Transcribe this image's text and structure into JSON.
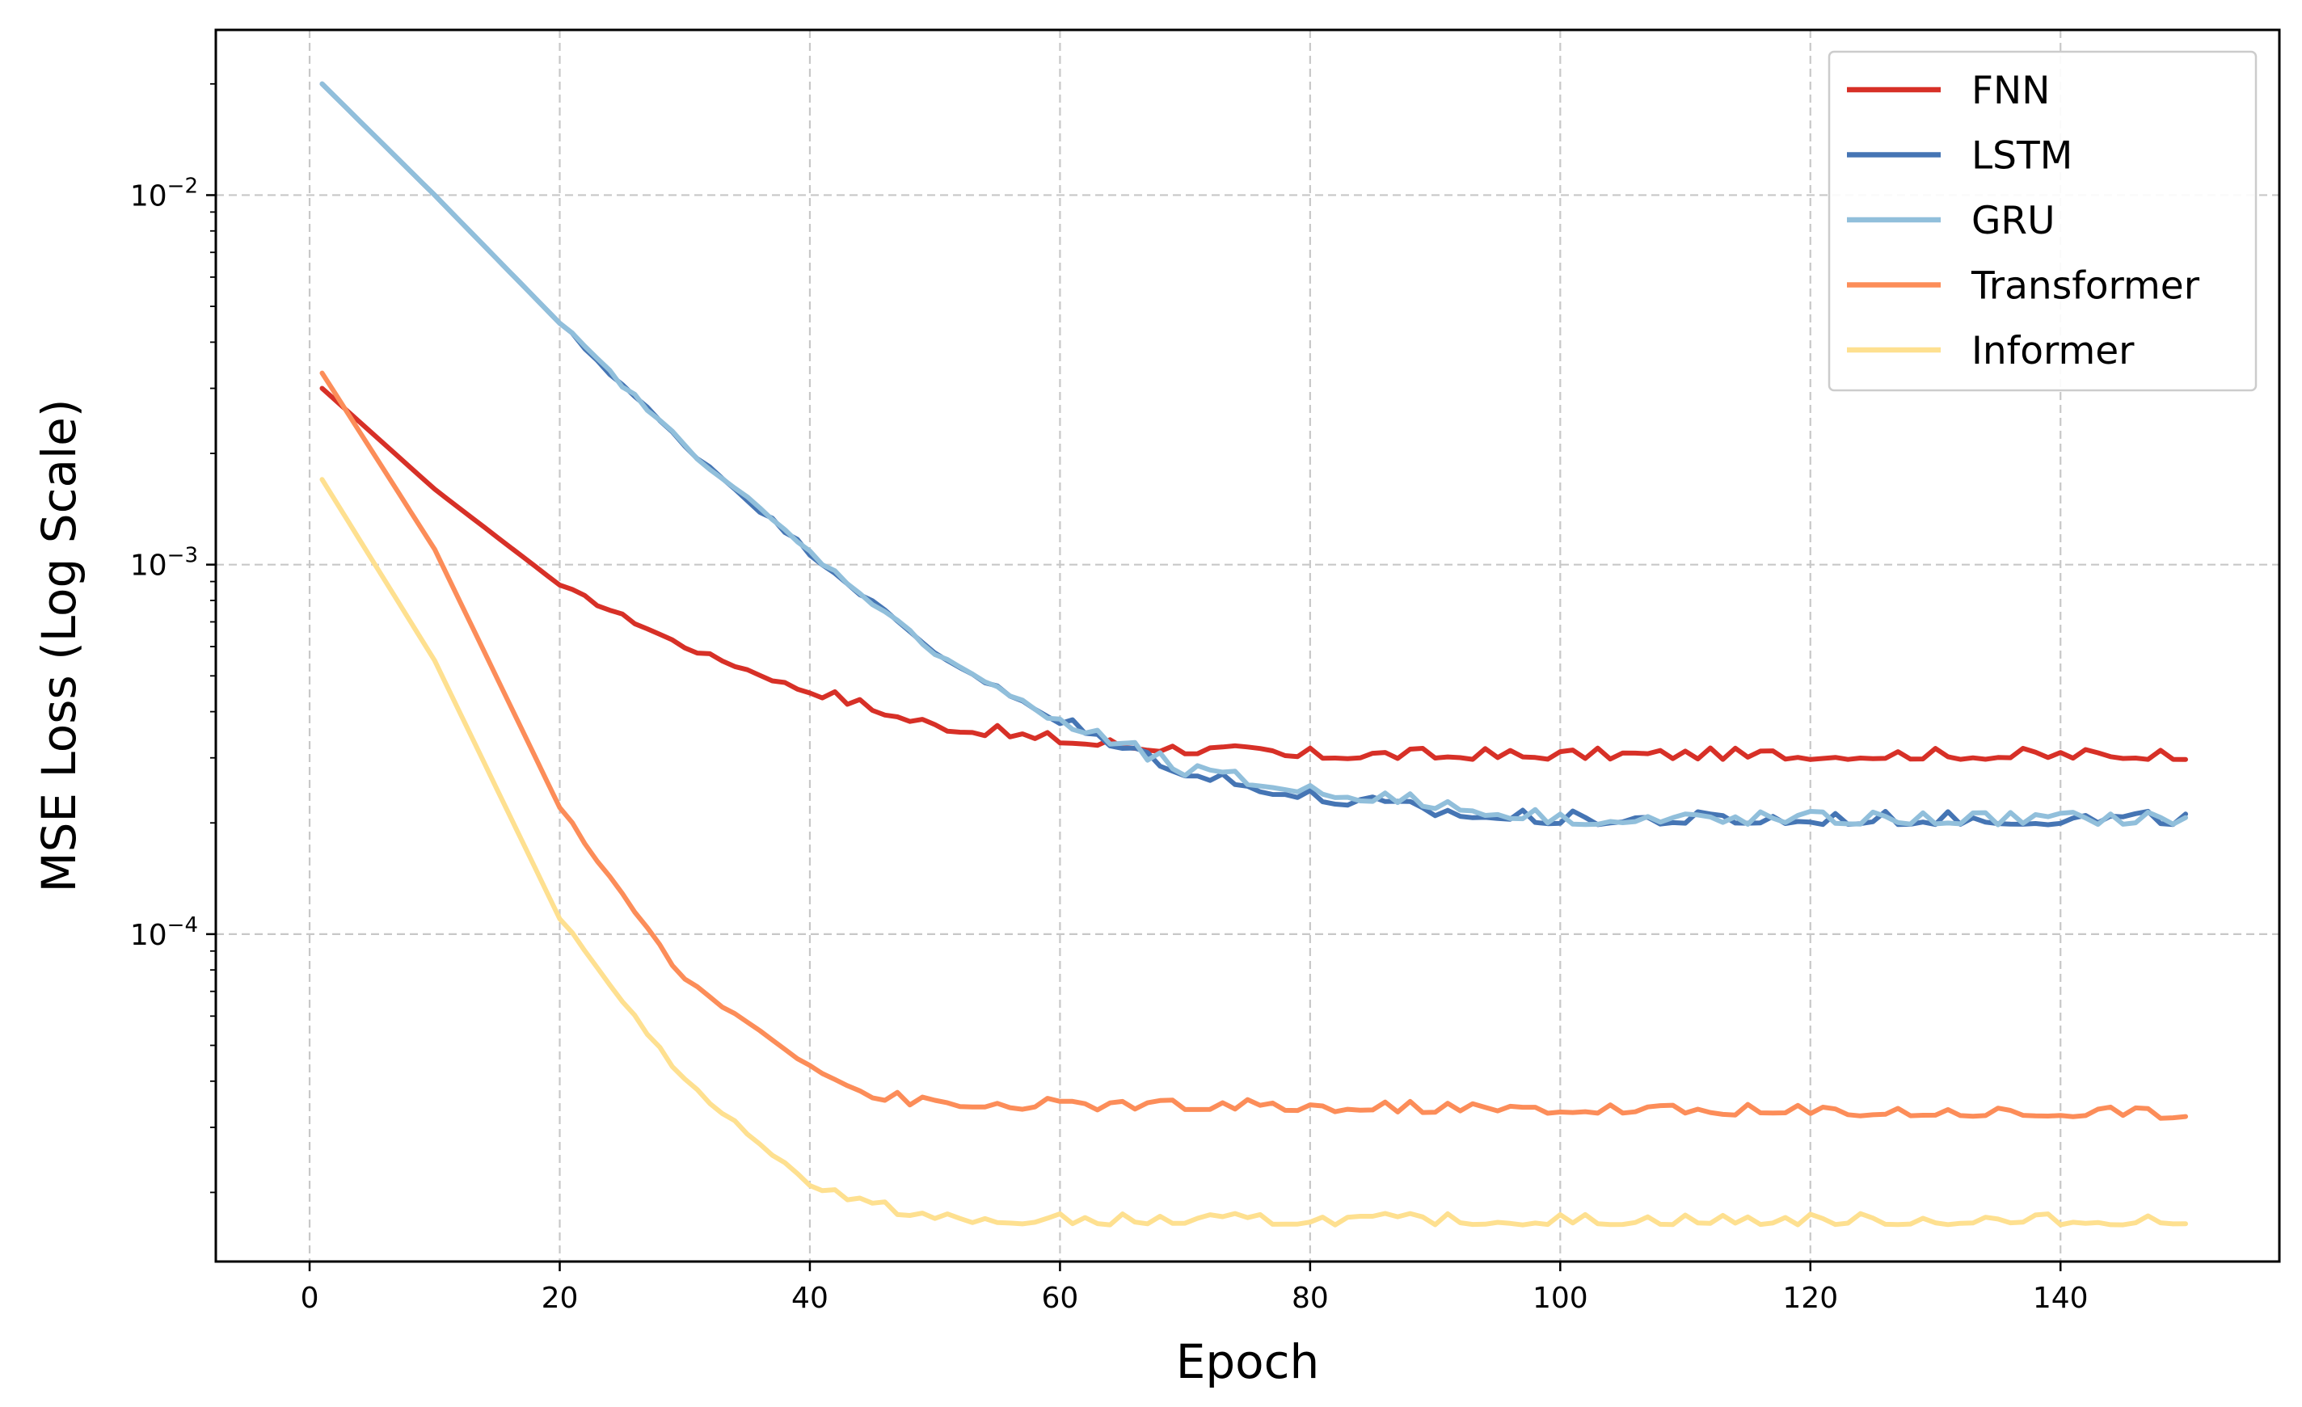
{
  "chart_data": {
    "type": "line",
    "title": "",
    "xlabel": "Epoch",
    "ylabel": "MSE Loss (Log Scale)",
    "yscale": "log",
    "xlim": [
      -7.5,
      157.5
    ],
    "ylim": [
      1.3e-05,
      0.028
    ],
    "x_ticks": [
      0,
      20,
      40,
      60,
      80,
      100,
      120,
      140
    ],
    "y_ticks": [
      {
        "value": 0.01,
        "base": "10",
        "exp": "−2"
      },
      {
        "value": 0.001,
        "base": "10",
        "exp": "−3"
      },
      {
        "value": 0.0001,
        "base": "10",
        "exp": "−4"
      }
    ],
    "grid": true,
    "legend_position": "top-right",
    "x": {
      "start": 1,
      "end": 150,
      "step": 1
    },
    "series": [
      {
        "name": "FNN",
        "color": "#d73027",
        "keypoints": [
          [
            1,
            0.003
          ],
          [
            10,
            0.0016
          ],
          [
            20,
            0.00088
          ],
          [
            30,
            0.0006
          ],
          [
            40,
            0.00045
          ],
          [
            50,
            0.00036
          ],
          [
            60,
            0.00033
          ],
          [
            70,
            0.00031
          ],
          [
            80,
            0.0003
          ],
          [
            150,
            0.0003
          ]
        ],
        "noise": 0.05,
        "noise_from": 40
      },
      {
        "name": "LSTM",
        "color": "#4575b4",
        "keypoints": [
          [
            1,
            0.02
          ],
          [
            10,
            0.01
          ],
          [
            20,
            0.0045
          ],
          [
            30,
            0.0021
          ],
          [
            40,
            0.00108
          ],
          [
            50,
            0.00058
          ],
          [
            60,
            0.00037
          ],
          [
            70,
            0.00027
          ],
          [
            80,
            0.00023
          ],
          [
            90,
            0.00021
          ],
          [
            100,
            0.0002
          ],
          [
            150,
            0.0002
          ]
        ],
        "noise": 0.06,
        "noise_from": 60
      },
      {
        "name": "GRU",
        "color": "#91bfdb",
        "keypoints": [
          [
            1,
            0.02
          ],
          [
            10,
            0.01
          ],
          [
            20,
            0.0045
          ],
          [
            30,
            0.0021
          ],
          [
            40,
            0.00108
          ],
          [
            50,
            0.00058
          ],
          [
            60,
            0.00037
          ],
          [
            70,
            0.00027
          ],
          [
            80,
            0.00024
          ],
          [
            90,
            0.00022
          ],
          [
            100,
            0.0002
          ],
          [
            150,
            0.0002
          ]
        ],
        "noise": 0.06,
        "noise_from": 60
      },
      {
        "name": "Transformer",
        "color": "#fc8d59",
        "keypoints": [
          [
            1,
            0.0033
          ],
          [
            10,
            0.0011
          ],
          [
            20,
            0.00022
          ],
          [
            30,
            7.5e-05
          ],
          [
            40,
            4.4e-05
          ],
          [
            45,
            3.6e-05
          ],
          [
            50,
            3.4e-05
          ],
          [
            150,
            3.2e-05
          ]
        ],
        "noise": 0.05,
        "noise_from": 35
      },
      {
        "name": "Informer",
        "color": "#fee090",
        "keypoints": [
          [
            1,
            0.0017
          ],
          [
            10,
            0.00055
          ],
          [
            20,
            0.00011
          ],
          [
            30,
            4e-05
          ],
          [
            40,
            2.1e-05
          ],
          [
            45,
            1.8e-05
          ],
          [
            52,
            1.65e-05
          ],
          [
            150,
            1.65e-05
          ]
        ],
        "noise": 0.05,
        "noise_from": 40
      }
    ]
  }
}
